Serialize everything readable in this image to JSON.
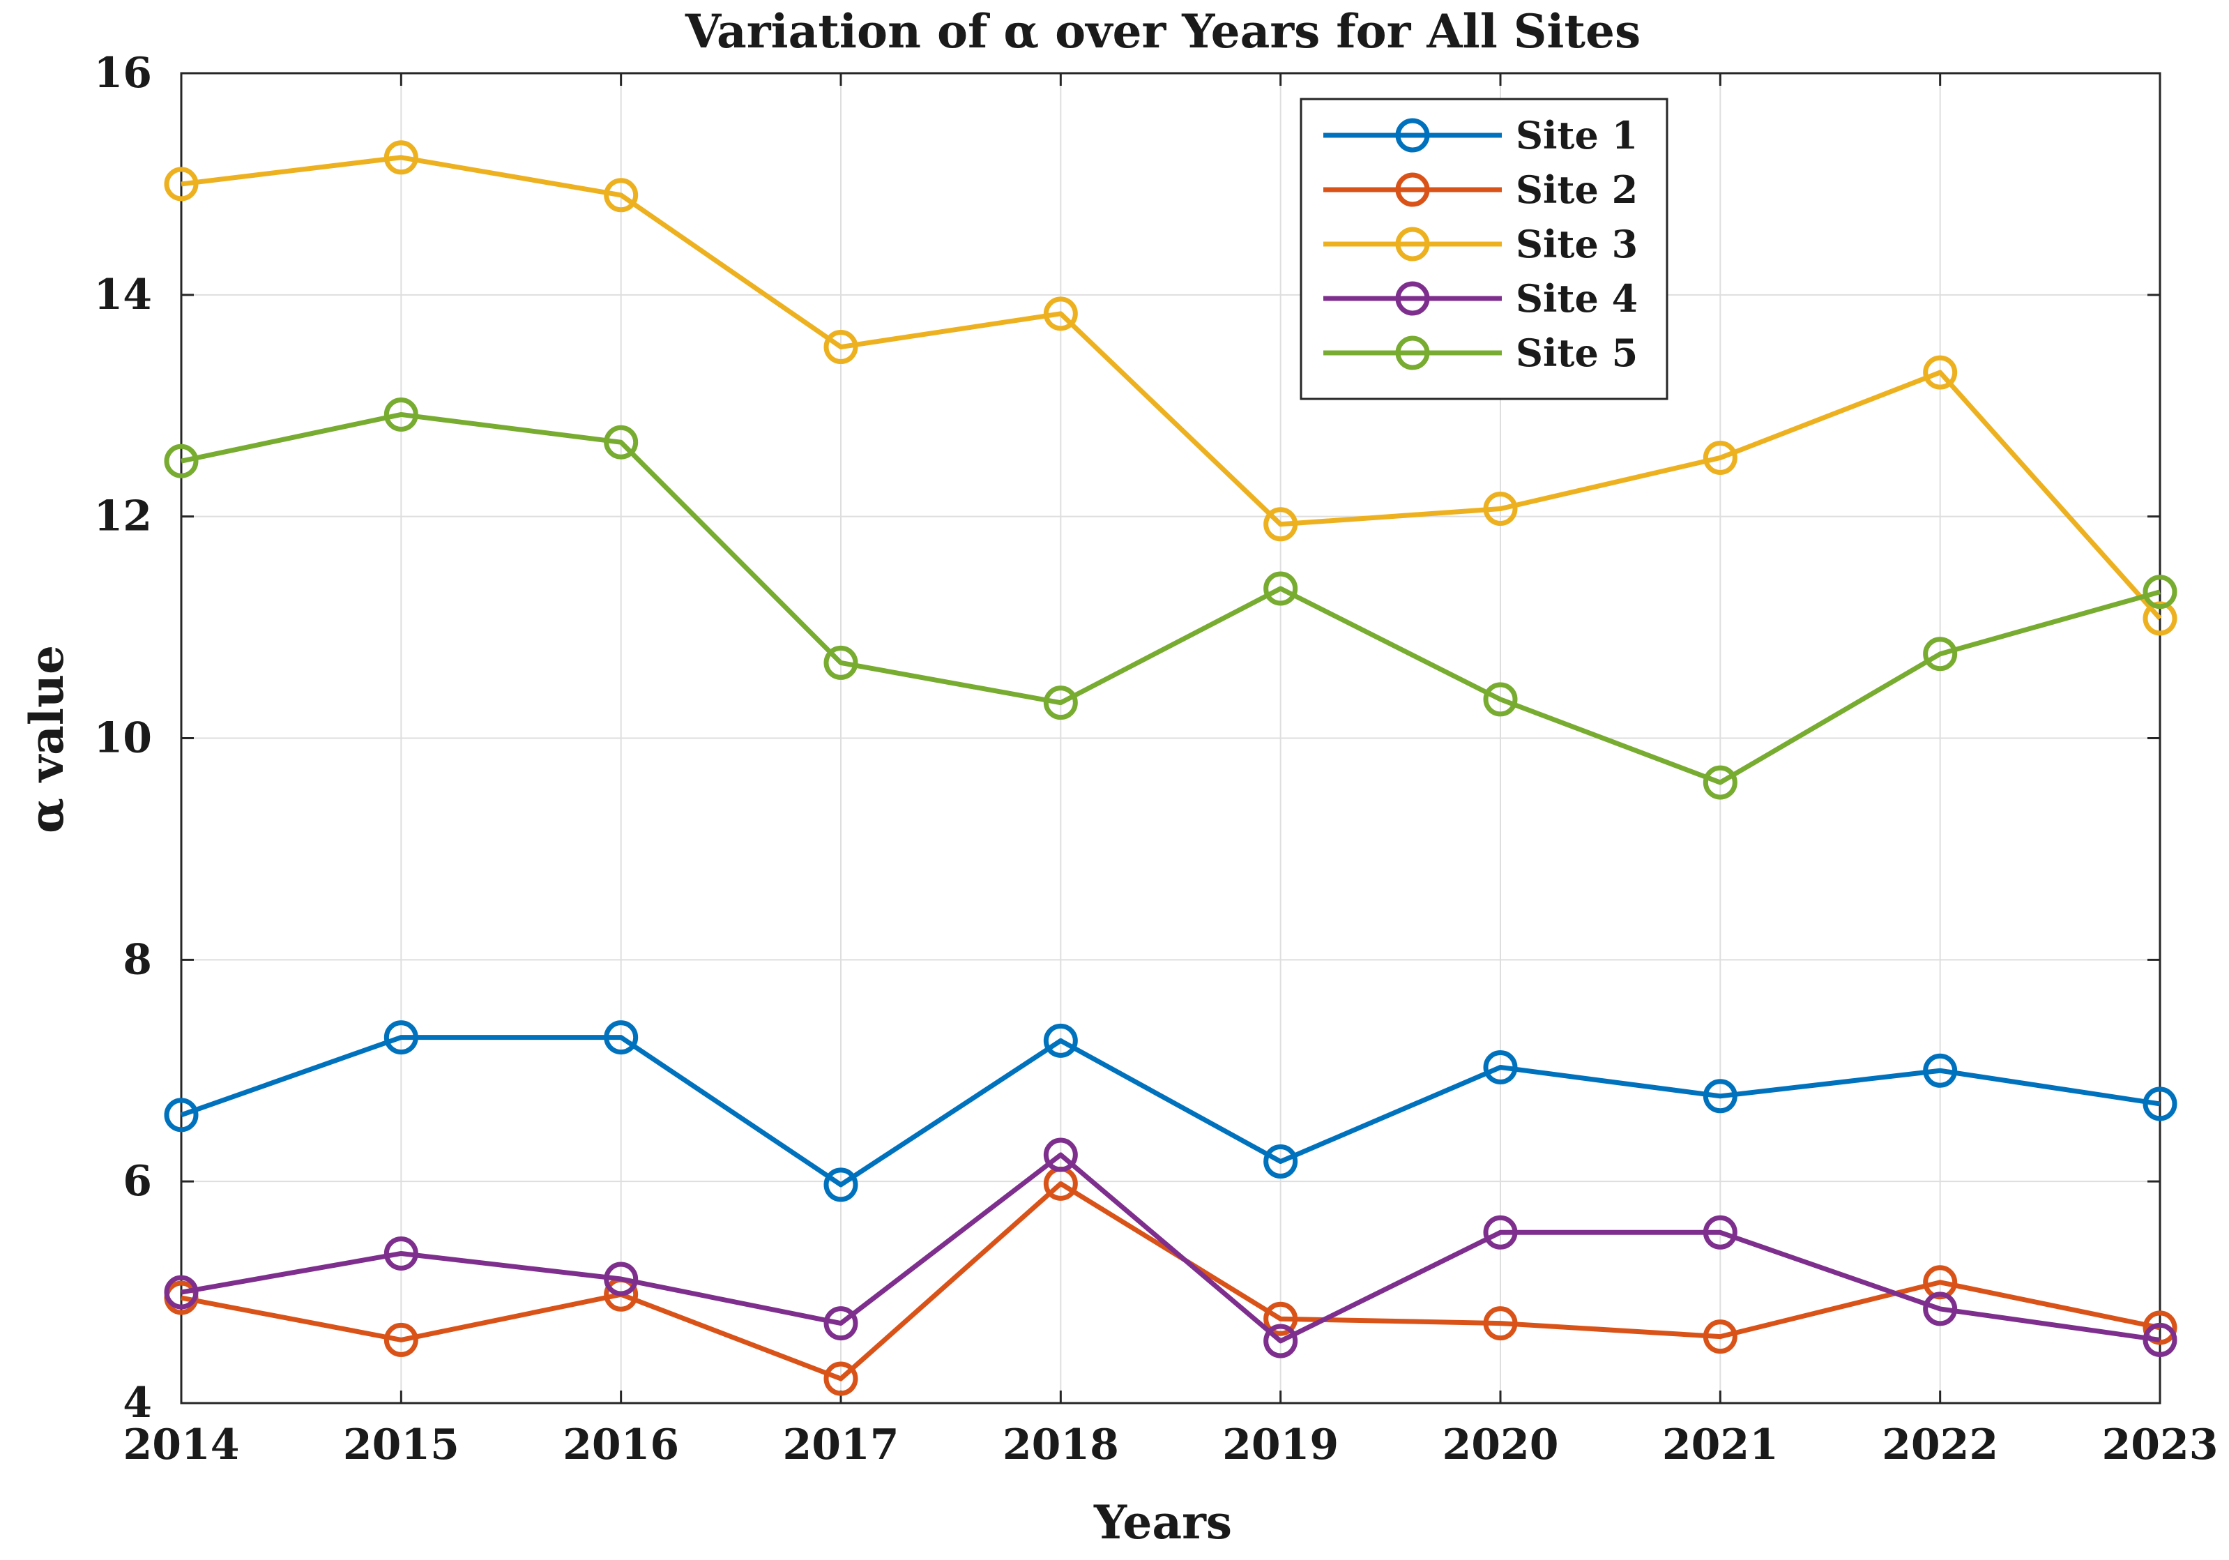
{
  "chart_data": {
    "type": "line",
    "title": "Variation of α over Years for All Sites",
    "xlabel": "Years",
    "ylabel": "α value",
    "x": [
      2014,
      2015,
      2016,
      2017,
      2018,
      2019,
      2020,
      2021,
      2022,
      2023
    ],
    "xticks": [
      "2014",
      "2015",
      "2016",
      "2017",
      "2018",
      "2019",
      "2020",
      "2021",
      "2022",
      "2023"
    ],
    "ylim": [
      4,
      16
    ],
    "yticks": [
      "4",
      "6",
      "8",
      "10",
      "12",
      "14",
      "16"
    ],
    "grid": true,
    "marker": "circle",
    "legend_position": "top-right",
    "series": [
      {
        "name": "Site 1",
        "color": "#0072BD",
        "values": [
          6.6,
          7.3,
          7.3,
          5.97,
          7.27,
          6.18,
          7.03,
          6.77,
          7.0,
          6.7
        ]
      },
      {
        "name": "Site 2",
        "color": "#D95319",
        "values": [
          4.95,
          4.57,
          4.98,
          4.22,
          5.98,
          4.76,
          4.72,
          4.6,
          5.09,
          4.68
        ]
      },
      {
        "name": "Site 3",
        "color": "#EDB120",
        "values": [
          15.0,
          15.24,
          14.9,
          13.53,
          13.83,
          11.93,
          12.07,
          12.53,
          13.3,
          11.08
        ]
      },
      {
        "name": "Site 4",
        "color": "#7E2F8E",
        "values": [
          5.0,
          5.35,
          5.12,
          4.72,
          6.24,
          4.56,
          5.54,
          5.54,
          4.85,
          4.57
        ]
      },
      {
        "name": "Site 5",
        "color": "#77AC30",
        "values": [
          12.5,
          12.92,
          12.67,
          10.68,
          10.32,
          11.35,
          10.35,
          9.6,
          10.76,
          11.32
        ]
      }
    ]
  }
}
